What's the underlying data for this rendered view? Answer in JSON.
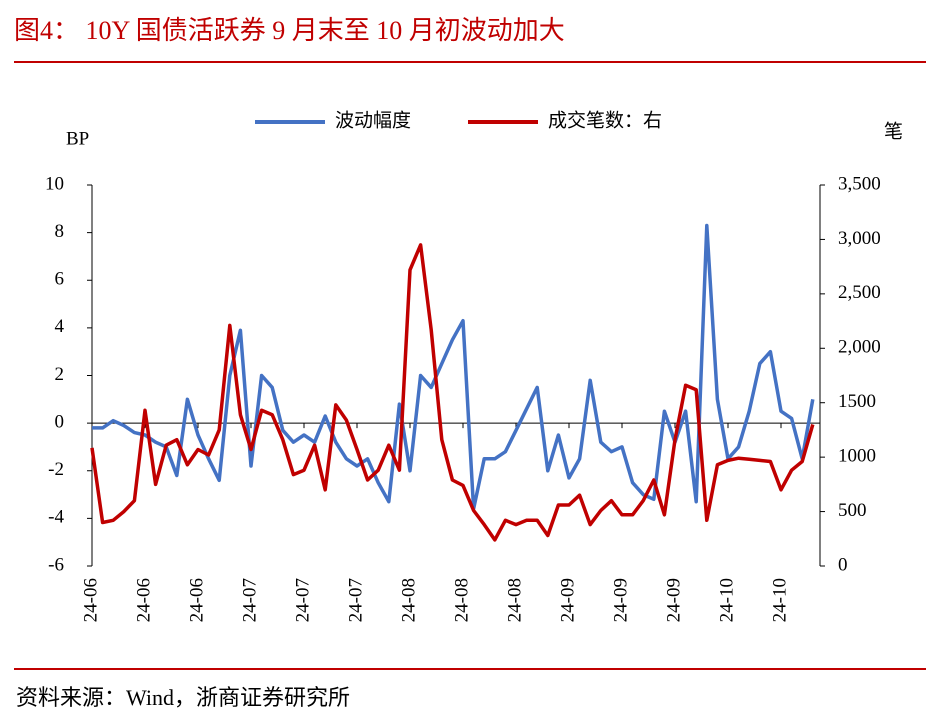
{
  "chart_data": {
    "type": "line",
    "title": "图4：  10Y 国债活跃券 9 月末至 10 月初波动加大",
    "y_label": "BP",
    "y2_label": "笔",
    "source": "资料来源：Wind，浙商证券研究所",
    "categories": [
      "24-06",
      null,
      null,
      null,
      null,
      "24-06",
      null,
      null,
      null,
      null,
      "24-06",
      null,
      null,
      null,
      null,
      "24-07",
      null,
      null,
      null,
      null,
      "24-07",
      null,
      null,
      null,
      null,
      "24-07",
      null,
      null,
      null,
      null,
      "24-08",
      null,
      null,
      null,
      null,
      "24-08",
      null,
      null,
      null,
      null,
      "24-08",
      null,
      null,
      null,
      null,
      "24-09",
      null,
      null,
      null,
      null,
      "24-09",
      null,
      null,
      null,
      null,
      "24-09",
      null,
      null,
      null,
      null,
      "24-10",
      null,
      null,
      null,
      null,
      "24-10",
      null,
      null,
      null
    ],
    "series": [
      {
        "name": "波动幅度",
        "color": "#4472c4",
        "values": [
          -0.2,
          -0.2,
          0.1,
          -0.1,
          -0.4,
          -0.5,
          -0.8,
          -1.0,
          -2.2,
          1.0,
          -0.5,
          -1.5,
          -2.4,
          2.0,
          3.9,
          -1.8,
          2.0,
          1.5,
          -0.3,
          -0.8,
          -0.5,
          -0.8,
          0.3,
          -0.8,
          -1.5,
          -1.8,
          -1.5,
          -2.5,
          -3.3,
          0.8,
          -2.0,
          2.0,
          1.5,
          2.5,
          3.5,
          4.3,
          -3.6,
          -1.5,
          -1.5,
          -1.2,
          -0.3,
          0.6,
          1.5,
          -2.0,
          -0.5,
          -2.3,
          -1.5,
          1.8,
          -0.8,
          -1.2,
          -1.0,
          -2.5,
          -3.0,
          -3.2,
          0.5,
          -0.8,
          0.5,
          -3.3,
          8.3,
          1.0,
          -1.5,
          -1.0,
          0.5,
          2.5,
          3.0,
          0.5,
          0.2,
          -1.5,
          1.0
        ]
      },
      {
        "name": "成交笔数：右",
        "color": "#c00000",
        "axis": "y2",
        "values": [
          1085,
          400,
          420,
          500,
          600,
          1430,
          750,
          1110,
          1160,
          930,
          1070,
          1020,
          1250,
          2210,
          1390,
          1070,
          1430,
          1390,
          1160,
          840,
          880,
          1110,
          700,
          1480,
          1340,
          1070,
          790,
          880,
          1110,
          880,
          2720,
          2950,
          2170,
          1160,
          790,
          740,
          510,
          380,
          240,
          420,
          380,
          420,
          420,
          280,
          560,
          560,
          650,
          380,
          510,
          600,
          470,
          470,
          600,
          790,
          470,
          1160,
          1660,
          1620,
          420,
          930,
          970,
          990,
          980,
          970,
          960,
          700,
          880,
          960,
          1300
        ]
      }
    ],
    "ylim": [
      -6,
      10
    ],
    "yticks": [
      10,
      8,
      6,
      4,
      2,
      0,
      -2,
      -4,
      -6
    ],
    "y2lim": [
      0,
      3500
    ],
    "y2ticks": [
      {
        "value": 3500,
        "label": "3,500"
      },
      {
        "value": 3000,
        "label": "3,000"
      },
      {
        "value": 2500,
        "label": "2,500"
      },
      {
        "value": 2000,
        "label": "2,000"
      },
      1500,
      1000,
      500,
      0
    ],
    "legend": "top"
  }
}
